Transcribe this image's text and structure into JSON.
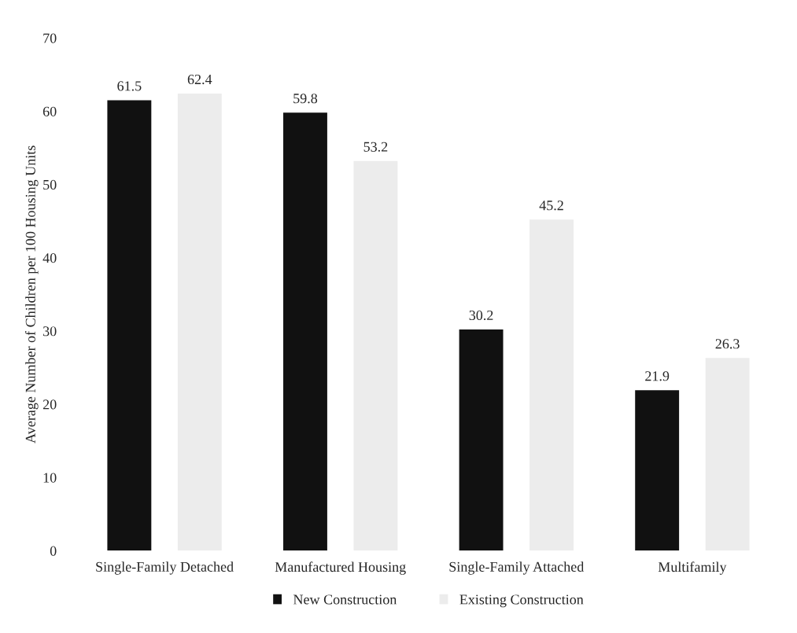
{
  "chart_data": {
    "type": "bar",
    "ylabel": "Average Number of Children per 100 Housing Units",
    "categories": [
      "Single-Family Detached",
      "Manufactured Housing",
      "Single-Family Attached",
      "Multifamily"
    ],
    "series": [
      {
        "name": "New Construction",
        "color": "#111111",
        "values": [
          61.5,
          59.8,
          30.2,
          21.9
        ]
      },
      {
        "name": "Existing Construction",
        "color": "#ececec",
        "values": [
          62.4,
          53.2,
          45.2,
          26.3
        ]
      }
    ],
    "ylim": [
      0,
      70
    ],
    "yticks": [
      0,
      10,
      20,
      30,
      40,
      50,
      60,
      70
    ],
    "data_labels": true,
    "grid": false,
    "legend": "bottom"
  }
}
